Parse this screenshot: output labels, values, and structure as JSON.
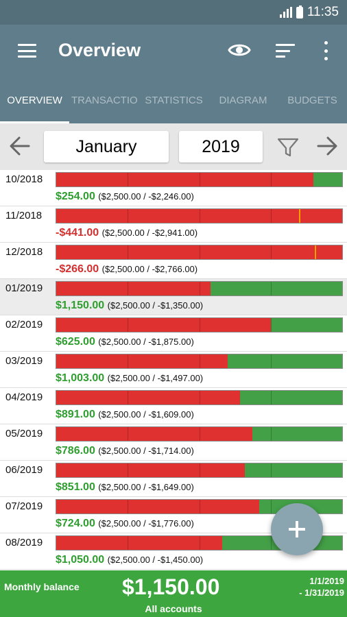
{
  "status": {
    "time": "11:35"
  },
  "appbar": {
    "title": "Overview"
  },
  "tabs": [
    {
      "label": "OVERVIEW",
      "active": true
    },
    {
      "label": "TRANSACTIONS",
      "active": false
    },
    {
      "label": "STATISTICS",
      "active": false
    },
    {
      "label": "DIAGRAM",
      "active": false
    },
    {
      "label": "BUDGETS",
      "active": false
    }
  ],
  "period": {
    "month": "January",
    "year": "2019"
  },
  "rows": [
    {
      "date": "10/2018",
      "amount": "$254.00",
      "detail": "($2,500.00 / -$2,246.00)",
      "income": 2500,
      "expense": 2246,
      "negative": false,
      "highlight": false
    },
    {
      "date": "11/2018",
      "amount": "-$441.00",
      "detail": "($2,500.00 / -$2,941.00)",
      "income": 2500,
      "expense": 2941,
      "negative": true,
      "highlight": false
    },
    {
      "date": "12/2018",
      "amount": "-$266.00",
      "detail": "($2,500.00 / -$2,766.00)",
      "income": 2500,
      "expense": 2766,
      "negative": true,
      "highlight": false
    },
    {
      "date": "01/2019",
      "amount": "$1,150.00",
      "detail": "($2,500.00 / -$1,350.00)",
      "income": 2500,
      "expense": 1350,
      "negative": false,
      "highlight": true
    },
    {
      "date": "02/2019",
      "amount": "$625.00",
      "detail": "($2,500.00 / -$1,875.00)",
      "income": 2500,
      "expense": 1875,
      "negative": false,
      "highlight": false
    },
    {
      "date": "03/2019",
      "amount": "$1,003.00",
      "detail": "($2,500.00 / -$1,497.00)",
      "income": 2500,
      "expense": 1497,
      "negative": false,
      "highlight": false
    },
    {
      "date": "04/2019",
      "amount": "$891.00",
      "detail": "($2,500.00 / -$1,609.00)",
      "income": 2500,
      "expense": 1609,
      "negative": false,
      "highlight": false
    },
    {
      "date": "05/2019",
      "amount": "$786.00",
      "detail": "($2,500.00 / -$1,714.00)",
      "income": 2500,
      "expense": 1714,
      "negative": false,
      "highlight": false
    },
    {
      "date": "06/2019",
      "amount": "$851.00",
      "detail": "($2,500.00 / -$1,649.00)",
      "income": 2500,
      "expense": 1649,
      "negative": false,
      "highlight": false
    },
    {
      "date": "07/2019",
      "amount": "$724.00",
      "detail": "($2,500.00 / -$1,776.00)",
      "income": 2500,
      "expense": 1776,
      "negative": false,
      "highlight": false
    },
    {
      "date": "08/2019",
      "amount": "$1,050.00",
      "detail": "($2,500.00 / -$1,450.00)",
      "income": 2500,
      "expense": 1450,
      "negative": false,
      "highlight": false
    }
  ],
  "footer": {
    "label": "Monthly balance",
    "amount": "$1,150.00",
    "accounts": "All accounts",
    "range_start": "1/1/2019",
    "range_end": "- 1/31/2019"
  },
  "colors": {
    "income": "#43a047",
    "expense": "#e03131",
    "over_marker": "#ffa000",
    "primary": "#607d8b"
  },
  "icons": [
    "menu-icon",
    "eye-icon",
    "sort-icon",
    "more-vert-icon",
    "arrow-left-icon",
    "filter-icon",
    "arrow-right-icon",
    "add-icon"
  ]
}
